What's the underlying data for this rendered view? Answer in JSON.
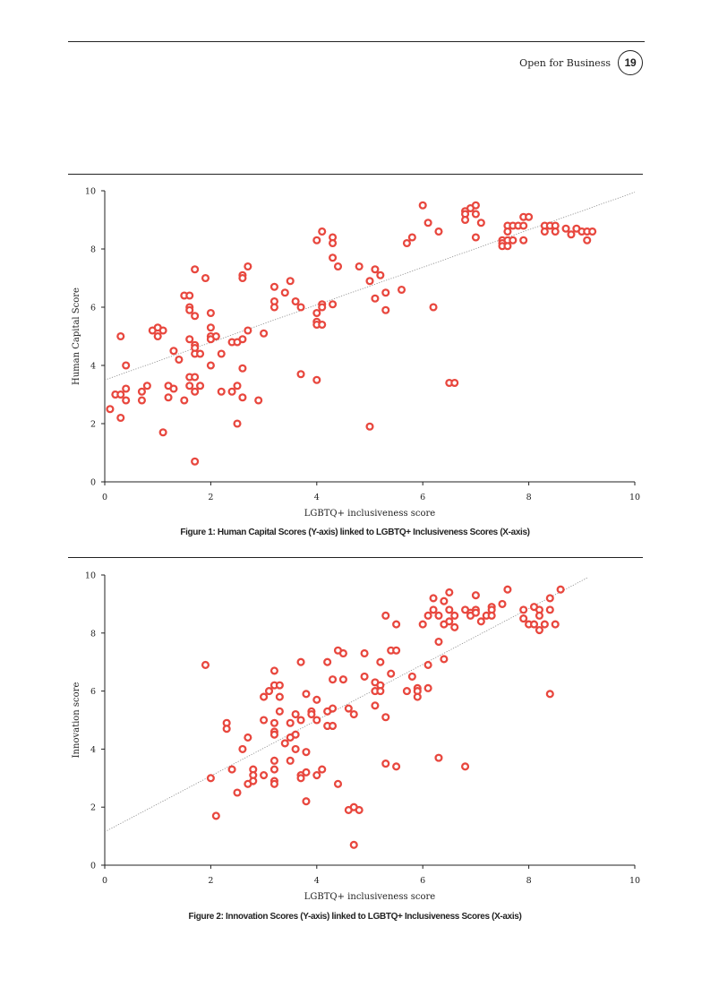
{
  "header": {
    "title": "Open for Business",
    "page_number": "19"
  },
  "colors": {
    "marker": "#e8473e",
    "trend": "#888888",
    "axis": "#222222"
  },
  "chart_data": [
    {
      "type": "scatter",
      "caption": "Figure 1: Human Capital Scores (Y-axis) linked to LGBTQ+ Inclusiveness Scores (X-axis)",
      "xlabel": "LGBTQ+ inclusiveness score",
      "ylabel": "Human Capital Score",
      "xlim": [
        0,
        10
      ],
      "ylim": [
        0,
        10
      ],
      "xticks": [
        0,
        2,
        4,
        6,
        8,
        10
      ],
      "yticks": [
        0,
        2,
        4,
        6,
        8,
        10
      ],
      "trendline": [
        [
          0,
          3.5
        ],
        [
          10,
          9.95
        ]
      ],
      "points": [
        [
          0.1,
          2.5
        ],
        [
          0.2,
          3.0
        ],
        [
          0.3,
          3.0
        ],
        [
          0.3,
          2.2
        ],
        [
          0.3,
          5.0
        ],
        [
          0.4,
          4.0
        ],
        [
          0.4,
          3.2
        ],
        [
          0.4,
          2.8
        ],
        [
          0.7,
          3.1
        ],
        [
          0.7,
          2.8
        ],
        [
          0.8,
          3.3
        ],
        [
          0.9,
          5.2
        ],
        [
          1.0,
          5.3
        ],
        [
          1.0,
          5.0
        ],
        [
          1.1,
          5.2
        ],
        [
          1.1,
          1.7
        ],
        [
          1.2,
          3.3
        ],
        [
          1.2,
          2.9
        ],
        [
          1.3,
          4.5
        ],
        [
          1.3,
          3.2
        ],
        [
          1.4,
          4.2
        ],
        [
          1.5,
          2.8
        ],
        [
          1.5,
          6.4
        ],
        [
          1.6,
          6.4
        ],
        [
          1.6,
          6.0
        ],
        [
          1.6,
          5.9
        ],
        [
          1.6,
          4.9
        ],
        [
          1.6,
          3.6
        ],
        [
          1.6,
          3.3
        ],
        [
          1.7,
          5.7
        ],
        [
          1.7,
          4.7
        ],
        [
          1.7,
          4.6
        ],
        [
          1.7,
          4.4
        ],
        [
          1.7,
          3.6
        ],
        [
          1.7,
          3.1
        ],
        [
          1.7,
          0.7
        ],
        [
          1.7,
          7.3
        ],
        [
          1.8,
          4.4
        ],
        [
          1.8,
          3.3
        ],
        [
          1.9,
          7.0
        ],
        [
          2.0,
          5.8
        ],
        [
          2.0,
          5.3
        ],
        [
          2.0,
          5.0
        ],
        [
          2.0,
          4.9
        ],
        [
          2.0,
          4.0
        ],
        [
          2.1,
          5.0
        ],
        [
          2.2,
          4.4
        ],
        [
          2.2,
          3.1
        ],
        [
          2.4,
          4.8
        ],
        [
          2.4,
          3.1
        ],
        [
          2.5,
          4.8
        ],
        [
          2.5,
          3.3
        ],
        [
          2.5,
          2.0
        ],
        [
          2.6,
          7.1
        ],
        [
          2.6,
          7.0
        ],
        [
          2.6,
          4.9
        ],
        [
          2.6,
          3.9
        ],
        [
          2.6,
          2.9
        ],
        [
          2.7,
          7.4
        ],
        [
          2.7,
          5.2
        ],
        [
          2.9,
          2.8
        ],
        [
          3.0,
          5.1
        ],
        [
          3.2,
          6.7
        ],
        [
          3.2,
          6.2
        ],
        [
          3.2,
          6.0
        ],
        [
          3.4,
          6.5
        ],
        [
          3.5,
          6.9
        ],
        [
          3.6,
          6.2
        ],
        [
          3.7,
          6.0
        ],
        [
          3.7,
          3.7
        ],
        [
          4.0,
          8.3
        ],
        [
          4.0,
          5.8
        ],
        [
          4.0,
          5.5
        ],
        [
          4.0,
          5.4
        ],
        [
          4.0,
          3.5
        ],
        [
          4.1,
          8.6
        ],
        [
          4.1,
          6.1
        ],
        [
          4.1,
          6.0
        ],
        [
          4.1,
          5.4
        ],
        [
          4.3,
          8.4
        ],
        [
          4.3,
          8.2
        ],
        [
          4.3,
          7.7
        ],
        [
          4.3,
          6.1
        ],
        [
          4.4,
          7.4
        ],
        [
          4.8,
          7.4
        ],
        [
          5.0,
          6.9
        ],
        [
          5.0,
          1.9
        ],
        [
          5.1,
          7.3
        ],
        [
          5.1,
          6.3
        ],
        [
          5.2,
          7.1
        ],
        [
          5.3,
          6.5
        ],
        [
          5.3,
          5.9
        ],
        [
          5.6,
          6.6
        ],
        [
          5.7,
          8.2
        ],
        [
          5.8,
          8.4
        ],
        [
          6.0,
          9.5
        ],
        [
          6.1,
          8.9
        ],
        [
          6.2,
          6.0
        ],
        [
          6.3,
          8.6
        ],
        [
          6.5,
          3.4
        ],
        [
          6.6,
          3.4
        ],
        [
          6.8,
          9.3
        ],
        [
          6.8,
          9.2
        ],
        [
          6.8,
          9.0
        ],
        [
          6.9,
          9.4
        ],
        [
          7.0,
          9.5
        ],
        [
          7.0,
          9.2
        ],
        [
          7.0,
          8.4
        ],
        [
          7.1,
          8.9
        ],
        [
          7.5,
          8.3
        ],
        [
          7.5,
          8.2
        ],
        [
          7.5,
          8.1
        ],
        [
          7.6,
          8.8
        ],
        [
          7.6,
          8.6
        ],
        [
          7.6,
          8.3
        ],
        [
          7.6,
          8.1
        ],
        [
          7.7,
          8.8
        ],
        [
          7.7,
          8.3
        ],
        [
          7.8,
          8.8
        ],
        [
          7.9,
          8.8
        ],
        [
          7.9,
          8.3
        ],
        [
          7.9,
          9.1
        ],
        [
          8.0,
          9.1
        ],
        [
          8.3,
          8.8
        ],
        [
          8.3,
          8.6
        ],
        [
          8.4,
          8.8
        ],
        [
          8.5,
          8.8
        ],
        [
          8.5,
          8.6
        ],
        [
          8.7,
          8.7
        ],
        [
          8.8,
          8.5
        ],
        [
          8.9,
          8.7
        ],
        [
          9.0,
          8.6
        ],
        [
          9.1,
          8.6
        ],
        [
          9.1,
          8.3
        ],
        [
          9.2,
          8.6
        ]
      ]
    },
    {
      "type": "scatter",
      "caption": "Figure 2: Innovation Scores (Y-axis) linked to LGBTQ+ Inclusiveness Scores (X-axis)",
      "xlabel": "LGBTQ+ inclusiveness score",
      "ylabel": "Innovation score",
      "xlim": [
        0,
        10
      ],
      "ylim": [
        0,
        10
      ],
      "xticks": [
        0,
        2,
        4,
        6,
        8,
        10
      ],
      "yticks": [
        0,
        2,
        4,
        6,
        8,
        10
      ],
      "trendline": [
        [
          0,
          1.15
        ],
        [
          9.1,
          9.9
        ]
      ],
      "points": [
        [
          1.9,
          6.9
        ],
        [
          2.0,
          3.0
        ],
        [
          2.1,
          1.7
        ],
        [
          2.3,
          4.9
        ],
        [
          2.3,
          4.7
        ],
        [
          2.4,
          3.3
        ],
        [
          2.5,
          2.5
        ],
        [
          2.6,
          4.0
        ],
        [
          2.7,
          4.4
        ],
        [
          2.7,
          2.8
        ],
        [
          2.8,
          3.3
        ],
        [
          2.8,
          3.1
        ],
        [
          2.8,
          2.9
        ],
        [
          3.0,
          5.8
        ],
        [
          3.0,
          5.0
        ],
        [
          3.0,
          3.1
        ],
        [
          3.1,
          6.0
        ],
        [
          3.2,
          6.7
        ],
        [
          3.2,
          6.2
        ],
        [
          3.2,
          4.9
        ],
        [
          3.2,
          4.6
        ],
        [
          3.2,
          4.5
        ],
        [
          3.2,
          3.6
        ],
        [
          3.2,
          3.3
        ],
        [
          3.2,
          2.9
        ],
        [
          3.2,
          2.8
        ],
        [
          3.3,
          6.2
        ],
        [
          3.3,
          5.8
        ],
        [
          3.3,
          5.3
        ],
        [
          3.4,
          4.2
        ],
        [
          3.5,
          4.9
        ],
        [
          3.5,
          4.4
        ],
        [
          3.5,
          3.6
        ],
        [
          3.6,
          5.2
        ],
        [
          3.6,
          4.5
        ],
        [
          3.6,
          4.0
        ],
        [
          3.7,
          7.0
        ],
        [
          3.7,
          5.0
        ],
        [
          3.7,
          3.1
        ],
        [
          3.7,
          3.0
        ],
        [
          3.8,
          5.9
        ],
        [
          3.8,
          3.9
        ],
        [
          3.8,
          3.2
        ],
        [
          3.8,
          2.2
        ],
        [
          3.9,
          5.3
        ],
        [
          3.9,
          5.2
        ],
        [
          4.0,
          5.7
        ],
        [
          4.0,
          5.0
        ],
        [
          4.0,
          3.1
        ],
        [
          4.1,
          3.3
        ],
        [
          4.2,
          5.3
        ],
        [
          4.2,
          4.8
        ],
        [
          4.2,
          7.0
        ],
        [
          4.3,
          6.4
        ],
        [
          4.3,
          5.4
        ],
        [
          4.3,
          4.8
        ],
        [
          4.4,
          7.4
        ],
        [
          4.4,
          2.8
        ],
        [
          4.5,
          7.3
        ],
        [
          4.5,
          6.4
        ],
        [
          4.6,
          5.4
        ],
        [
          4.6,
          1.9
        ],
        [
          4.7,
          5.2
        ],
        [
          4.7,
          2.0
        ],
        [
          4.7,
          0.7
        ],
        [
          4.8,
          1.9
        ],
        [
          4.9,
          7.3
        ],
        [
          4.9,
          6.5
        ],
        [
          5.1,
          6.3
        ],
        [
          5.1,
          6.0
        ],
        [
          5.1,
          5.5
        ],
        [
          5.2,
          7.0
        ],
        [
          5.2,
          6.2
        ],
        [
          5.2,
          6.0
        ],
        [
          5.3,
          8.6
        ],
        [
          5.3,
          5.1
        ],
        [
          5.3,
          3.5
        ],
        [
          5.4,
          7.4
        ],
        [
          5.4,
          6.6
        ],
        [
          5.5,
          7.4
        ],
        [
          5.5,
          8.3
        ],
        [
          5.5,
          3.4
        ],
        [
          5.7,
          6.0
        ],
        [
          5.8,
          6.5
        ],
        [
          5.9,
          6.1
        ],
        [
          5.9,
          6.0
        ],
        [
          5.9,
          5.8
        ],
        [
          6.0,
          8.3
        ],
        [
          6.1,
          8.6
        ],
        [
          6.1,
          6.9
        ],
        [
          6.1,
          6.1
        ],
        [
          6.2,
          9.2
        ],
        [
          6.2,
          8.8
        ],
        [
          6.3,
          8.6
        ],
        [
          6.3,
          7.7
        ],
        [
          6.3,
          3.7
        ],
        [
          6.4,
          9.1
        ],
        [
          6.4,
          8.3
        ],
        [
          6.4,
          7.1
        ],
        [
          6.5,
          9.4
        ],
        [
          6.5,
          8.8
        ],
        [
          6.5,
          8.4
        ],
        [
          6.6,
          8.6
        ],
        [
          6.6,
          8.2
        ],
        [
          6.8,
          8.8
        ],
        [
          6.8,
          3.4
        ],
        [
          6.9,
          8.7
        ],
        [
          6.9,
          8.6
        ],
        [
          7.0,
          9.3
        ],
        [
          7.0,
          8.8
        ],
        [
          7.0,
          8.7
        ],
        [
          7.1,
          8.4
        ],
        [
          7.2,
          8.6
        ],
        [
          7.3,
          8.9
        ],
        [
          7.3,
          8.8
        ],
        [
          7.3,
          8.6
        ],
        [
          7.5,
          9.0
        ],
        [
          7.6,
          9.5
        ],
        [
          7.9,
          8.8
        ],
        [
          7.9,
          8.5
        ],
        [
          8.0,
          8.3
        ],
        [
          8.1,
          8.9
        ],
        [
          8.1,
          8.3
        ],
        [
          8.2,
          8.8
        ],
        [
          8.2,
          8.6
        ],
        [
          8.2,
          8.1
        ],
        [
          8.3,
          8.3
        ],
        [
          8.4,
          8.8
        ],
        [
          8.4,
          9.2
        ],
        [
          8.4,
          5.9
        ],
        [
          8.5,
          8.3
        ],
        [
          8.6,
          9.5
        ]
      ]
    }
  ]
}
